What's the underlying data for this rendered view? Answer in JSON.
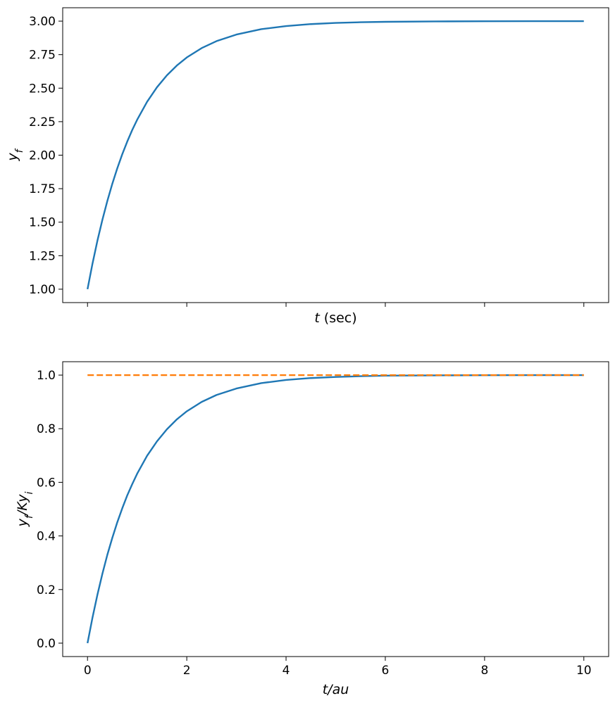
{
  "chart_data": [
    {
      "type": "line",
      "title": "",
      "xlabel": "t (sec)",
      "xlabel_parts": [
        {
          "text": "t",
          "italic": true
        },
        {
          "text": " (sec)",
          "italic": false
        }
      ],
      "ylabel": "y_f",
      "ylabel_parts": [
        {
          "text": "y",
          "italic": true
        },
        {
          "text": "f",
          "italic": true,
          "sub": true
        }
      ],
      "xlim": [
        -0.5,
        10.5
      ],
      "ylim": [
        0.9,
        3.1
      ],
      "x_ticks": [
        0,
        2,
        4,
        6,
        8,
        10
      ],
      "x_tick_labels_shown": false,
      "y_ticks": [
        1.0,
        1.25,
        1.5,
        1.75,
        2.0,
        2.25,
        2.5,
        2.75,
        3.0
      ],
      "y_tick_labels": [
        "1.00",
        "1.25",
        "1.50",
        "1.75",
        "2.00",
        "2.25",
        "2.50",
        "2.75",
        "3.00"
      ],
      "grid": false,
      "series": [
        {
          "color": "#1f77b4",
          "style": "solid",
          "x": [
            0,
            0.1,
            0.2,
            0.3,
            0.4,
            0.5,
            0.6,
            0.7,
            0.8,
            0.9,
            1.0,
            1.2,
            1.4,
            1.6,
            1.8,
            2.0,
            2.3,
            2.6,
            3.0,
            3.5,
            4.0,
            4.5,
            5.0,
            5.5,
            6.0,
            7.0,
            8.0,
            9.0,
            10.0
          ],
          "y": [
            1.0,
            1.19,
            1.363,
            1.518,
            1.659,
            1.787,
            1.902,
            2.007,
            2.101,
            2.187,
            2.264,
            2.398,
            2.507,
            2.596,
            2.669,
            2.729,
            2.799,
            2.851,
            2.9,
            2.94,
            2.963,
            2.978,
            2.987,
            2.992,
            2.995,
            2.998,
            2.9993,
            2.9998,
            2.9999
          ]
        }
      ]
    },
    {
      "type": "line",
      "title": "",
      "xlabel": "t/au",
      "xlabel_parts": [
        {
          "text": "t/au",
          "italic": true
        }
      ],
      "ylabel": "y_f/Ky_i",
      "ylabel_parts": [
        {
          "text": "y",
          "italic": true
        },
        {
          "text": "f",
          "italic": true,
          "sub": true
        },
        {
          "text": "/Ky",
          "italic": true
        },
        {
          "text": "i",
          "italic": true,
          "sub": true
        }
      ],
      "xlim": [
        -0.5,
        10.5
      ],
      "ylim": [
        -0.05,
        1.05
      ],
      "x_ticks": [
        0,
        2,
        4,
        6,
        8,
        10
      ],
      "x_tick_labels": [
        "0",
        "2",
        "4",
        "6",
        "8",
        "10"
      ],
      "y_ticks": [
        0.0,
        0.2,
        0.4,
        0.6,
        0.8,
        1.0
      ],
      "y_tick_labels": [
        "0.0",
        "0.2",
        "0.4",
        "0.6",
        "0.8",
        "1.0"
      ],
      "grid": false,
      "series": [
        {
          "color": "#1f77b4",
          "style": "solid",
          "x": [
            0,
            0.1,
            0.2,
            0.3,
            0.4,
            0.5,
            0.6,
            0.7,
            0.8,
            0.9,
            1.0,
            1.2,
            1.4,
            1.6,
            1.8,
            2.0,
            2.3,
            2.6,
            3.0,
            3.5,
            4.0,
            4.5,
            5.0,
            5.5,
            6.0,
            7.0,
            8.0,
            9.0,
            10.0
          ],
          "y": [
            0.0,
            0.095,
            0.181,
            0.259,
            0.33,
            0.393,
            0.451,
            0.503,
            0.551,
            0.593,
            0.632,
            0.699,
            0.753,
            0.798,
            0.835,
            0.865,
            0.9,
            0.926,
            0.95,
            0.97,
            0.982,
            0.989,
            0.993,
            0.996,
            0.998,
            0.999,
            0.9997,
            0.9999,
            1.0
          ]
        },
        {
          "color": "#ff7f0e",
          "style": "dashed",
          "x": [
            0,
            10
          ],
          "y": [
            1.0,
            1.0
          ]
        }
      ]
    }
  ]
}
